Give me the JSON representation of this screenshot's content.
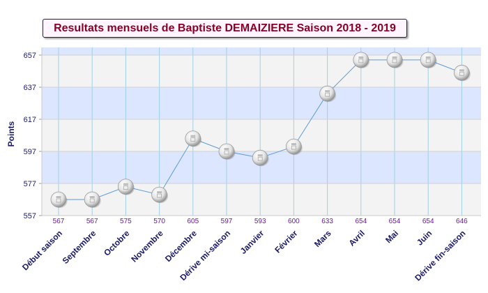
{
  "chart_data": {
    "type": "line",
    "title": "Resultats mensuels de Baptiste DEMAIZIERE Saison 2018 - 2019",
    "ylabel": "Points",
    "xlabel": "",
    "categories": [
      "Début saison",
      "Septembre",
      "Octobre",
      "Novembre",
      "Décembre",
      "Dérive mi-saison",
      "Janvier",
      "Février",
      "Mars",
      "Avril",
      "Mai",
      "Juin",
      "Dérive fin-saison"
    ],
    "values": [
      567,
      567,
      575,
      570,
      605,
      597,
      593,
      600,
      633,
      654,
      654,
      654,
      646
    ],
    "value_labels": [
      "567",
      "567",
      "575",
      "570",
      "605",
      "597",
      "593",
      "600",
      "633",
      "654",
      "654",
      "654",
      "646"
    ],
    "ylim": [
      557,
      667
    ],
    "yticks": [
      557,
      577,
      597,
      617,
      637,
      657
    ],
    "ytick_labels": [
      "557",
      "577",
      "597",
      "617",
      "637",
      "657"
    ],
    "grid": true,
    "legend": "none",
    "colors": {
      "title_text": "#8b0024",
      "axis_text": "#1a1a66",
      "value_text": "#6a1b9a",
      "line": "#5b9bd5",
      "band_light": "#f3f3f3",
      "band_blue": "#dde6ff",
      "gridline": "#9ed0e6"
    }
  }
}
